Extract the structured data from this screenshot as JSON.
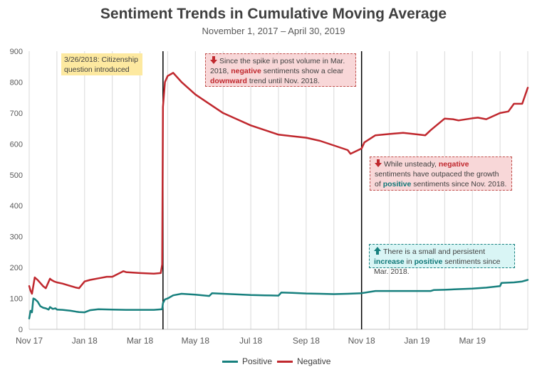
{
  "chart_data": {
    "type": "line",
    "title": "Sentiment Trends in Cumulative Moving Average",
    "subtitle": "November 1, 2017 – April 30, 2019",
    "xlabel": "",
    "ylabel": "",
    "ylim": [
      0,
      900
    ],
    "yticks": [
      0,
      100,
      200,
      300,
      400,
      500,
      600,
      700,
      800,
      900
    ],
    "x_ticks": [
      "Nov 17",
      "Jan 18",
      "Mar 18",
      "May 18",
      "Jul 18",
      "Sep 18",
      "Nov 18",
      "Jan 19",
      "Mar 19"
    ],
    "x_range_months": [
      0,
      18
    ],
    "grid": "vertical",
    "legend_position": "bottom",
    "event_lines": [
      4.83,
      12.0
    ],
    "series": [
      {
        "name": "Positive",
        "color": "#17807e",
        "x": [
          0,
          0.05,
          0.1,
          0.15,
          0.2,
          0.3,
          0.4,
          0.5,
          0.6,
          0.7,
          0.75,
          0.85,
          0.95,
          1.0,
          1.2,
          1.5,
          1.7,
          1.8,
          2.0,
          2.2,
          2.5,
          3.0,
          3.5,
          4.0,
          4.5,
          4.8,
          4.83,
          4.9,
          5.0,
          5.2,
          5.5,
          6.0,
          6.5,
          6.6,
          7.0,
          7.5,
          8.0,
          8.5,
          9.0,
          9.1,
          9.5,
          10.0,
          10.5,
          11.0,
          11.5,
          12.0,
          12.5,
          13.0,
          13.5,
          14.0,
          14.5,
          14.6,
          15.0,
          15.5,
          16.0,
          16.5,
          17.0,
          17.05,
          17.5,
          17.8,
          18.0
        ],
        "values": [
          35,
          60,
          55,
          100,
          98,
          90,
          75,
          70,
          68,
          64,
          72,
          66,
          68,
          64,
          63,
          60,
          57,
          56,
          55,
          62,
          65,
          64,
          63,
          63,
          63,
          65,
          85,
          97,
          100,
          110,
          115,
          112,
          108,
          117,
          115,
          113,
          111,
          110,
          109,
          119,
          118,
          116,
          115,
          114,
          115,
          117,
          124,
          124,
          124,
          124,
          124,
          127,
          128,
          130,
          132,
          135,
          140,
          150,
          152,
          155,
          160
        ]
      },
      {
        "name": "Negative",
        "color": "#c0282e",
        "x": [
          0,
          0.05,
          0.1,
          0.2,
          0.3,
          0.4,
          0.5,
          0.6,
          0.75,
          0.8,
          0.9,
          1.0,
          1.2,
          1.5,
          1.7,
          1.8,
          2.0,
          2.2,
          2.5,
          2.8,
          3.0,
          3.4,
          3.5,
          4.0,
          4.5,
          4.75,
          4.8,
          4.83,
          4.9,
          5.0,
          5.2,
          5.5,
          6.0,
          6.5,
          7.0,
          7.5,
          8.0,
          8.5,
          9.0,
          9.5,
          10.0,
          10.5,
          11.0,
          11.5,
          11.6,
          12.0,
          12.1,
          12.5,
          13.0,
          13.5,
          14.0,
          14.3,
          14.5,
          15.0,
          15.3,
          15.5,
          16.0,
          16.2,
          16.5,
          17.0,
          17.3,
          17.5,
          17.8,
          18.0
        ],
        "values": [
          140,
          125,
          115,
          168,
          160,
          150,
          140,
          133,
          164,
          160,
          155,
          152,
          148,
          140,
          135,
          133,
          155,
          160,
          165,
          170,
          170,
          188,
          185,
          182,
          180,
          182,
          210,
          720,
          800,
          820,
          830,
          800,
          760,
          730,
          700,
          680,
          660,
          645,
          630,
          625,
          620,
          610,
          595,
          580,
          568,
          585,
          605,
          628,
          632,
          636,
          631,
          628,
          645,
          682,
          680,
          676,
          683,
          685,
          680,
          700,
          705,
          730,
          730,
          782
        ]
      }
    ]
  },
  "annotations": {
    "note_text": "3/26/2018: Citizenship question introduced",
    "neg1_pre": "Since the spike in post volume in Mar. 2018, ",
    "neg1_em1": "negative",
    "neg1_mid": " sentiments show a clear ",
    "neg1_em2": "downward",
    "neg1_post": " trend until Nov. 2018.",
    "neg2_pre": "While unsteady, ",
    "neg2_em1": "negative",
    "neg2_mid": " sentiments have outpaced the growth of ",
    "neg2_em2": "positive",
    "neg2_post": " sentiments since Nov. 2018.",
    "pos_pre": "There is a small and persistent ",
    "pos_em1": "increase",
    "pos_mid": " in ",
    "pos_em2": "positive",
    "pos_post": " sentiments since Mar. 2018."
  },
  "legend": {
    "positive_label": "Positive",
    "negative_label": "Negative"
  }
}
